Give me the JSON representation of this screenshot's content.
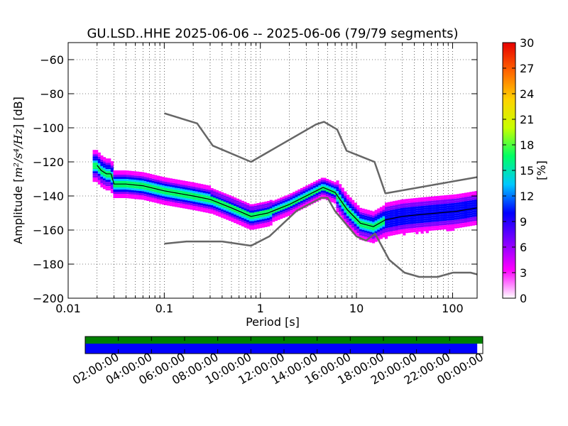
{
  "chart_data": {
    "type": "heatmap",
    "title": "GU.LSD..HHE   2025-06-06 -- 2025-06-06  (79/79 segments)",
    "xlabel": "Period [s]",
    "ylabel_prefix": "Amplitude [",
    "ylabel_math": "m²/s⁴/Hz",
    "ylabel_suffix": "] [dB]",
    "x_scale": "log",
    "xlim": [
      0.01,
      180
    ],
    "ylim": [
      -200,
      -50
    ],
    "x_ticks": [
      {
        "value": 0.01,
        "label": "0.01"
      },
      {
        "value": 0.1,
        "label": "0.1"
      },
      {
        "value": 1,
        "label": "1"
      },
      {
        "value": 10,
        "label": "10"
      },
      {
        "value": 100,
        "label": "100"
      }
    ],
    "y_ticks": [
      {
        "value": -60,
        "label": "−60"
      },
      {
        "value": -80,
        "label": "−80"
      },
      {
        "value": -100,
        "label": "−100"
      },
      {
        "value": -120,
        "label": "−120"
      },
      {
        "value": -140,
        "label": "−140"
      },
      {
        "value": -160,
        "label": "−160"
      },
      {
        "value": -180,
        "label": "−180"
      },
      {
        "value": -200,
        "label": "−200"
      }
    ],
    "grid": true,
    "colorbar": {
      "label": "[%]",
      "range": [
        0,
        30
      ],
      "ticks": [
        "0",
        "3",
        "6",
        "9",
        "12",
        "15",
        "18",
        "21",
        "24",
        "27",
        "30"
      ],
      "colors": [
        "#ffffff",
        "#ff00ff",
        "#7f00ff",
        "#0000ff",
        "#00c8ff",
        "#00ff64",
        "#c8ff00",
        "#ffd200",
        "#ff6400",
        "#e60000"
      ]
    },
    "new_high_noise_model": [
      {
        "period": 0.1,
        "db": -91.5
      },
      {
        "period": 0.22,
        "db": -97.4
      },
      {
        "period": 0.32,
        "db": -110.5
      },
      {
        "period": 0.8,
        "db": -120.0
      },
      {
        "period": 3.8,
        "db": -98.0
      },
      {
        "period": 4.6,
        "db": -96.5
      },
      {
        "period": 6.3,
        "db": -101.0
      },
      {
        "period": 7.9,
        "db": -113.5
      },
      {
        "period": 15.4,
        "db": -120.0
      },
      {
        "period": 20.0,
        "db": -138.5
      },
      {
        "period": 354.8,
        "db": -126.0
      }
    ],
    "new_low_noise_model": [
      {
        "period": 0.1,
        "db": -168.0
      },
      {
        "period": 0.17,
        "db": -166.7
      },
      {
        "period": 0.4,
        "db": -166.7
      },
      {
        "period": 0.8,
        "db": -169.2
      },
      {
        "period": 1.24,
        "db": -163.7
      },
      {
        "period": 2.4,
        "db": -148.6
      },
      {
        "period": 4.3,
        "db": -141.1
      },
      {
        "period": 5.0,
        "db": -141.1
      },
      {
        "period": 6.0,
        "db": -149.0
      },
      {
        "period": 10.0,
        "db": -163.8
      },
      {
        "period": 12.6,
        "db": -166.2
      },
      {
        "period": 15.6,
        "db": -162.1
      },
      {
        "period": 21.9,
        "db": -177.5
      },
      {
        "period": 31.6,
        "db": -185.0
      },
      {
        "period": 45.0,
        "db": -187.5
      },
      {
        "period": 70.0,
        "db": -187.5
      },
      {
        "period": 101.0,
        "db": -185.0
      },
      {
        "period": 154.0,
        "db": -185.0
      },
      {
        "period": 180.0,
        "db": -186.0
      }
    ],
    "psd_mode": [
      {
        "period": 0.02,
        "db": -122
      },
      {
        "period": 0.022,
        "db": -125
      },
      {
        "period": 0.025,
        "db": -127
      },
      {
        "period": 0.028,
        "db": -127
      },
      {
        "period": 0.03,
        "db": -133
      },
      {
        "period": 0.04,
        "db": -133
      },
      {
        "period": 0.06,
        "db": -134
      },
      {
        "period": 0.1,
        "db": -137
      },
      {
        "period": 0.2,
        "db": -140
      },
      {
        "period": 0.3,
        "db": -142
      },
      {
        "period": 0.5,
        "db": -147
      },
      {
        "period": 0.8,
        "db": -152
      },
      {
        "period": 1.2,
        "db": -150
      },
      {
        "period": 2,
        "db": -145
      },
      {
        "period": 3,
        "db": -140
      },
      {
        "period": 4.5,
        "db": -135
      },
      {
        "period": 6,
        "db": -138
      },
      {
        "period": 8,
        "db": -148
      },
      {
        "period": 11,
        "db": -156
      },
      {
        "period": 15,
        "db": -158
      },
      {
        "period": 20,
        "db": -154
      },
      {
        "period": 30,
        "db": -152
      },
      {
        "period": 45,
        "db": -151
      },
      {
        "period": 70,
        "db": -150
      },
      {
        "period": 110,
        "db": -149
      },
      {
        "period": 180,
        "db": -147
      }
    ],
    "psd_heatmap_regions": [
      {
        "period_min": 0.018,
        "period_max": 0.03,
        "db_low": -129,
        "db_high": -113,
        "level": 3
      },
      {
        "period_min": 0.03,
        "period_max": 0.3,
        "db_low": -145,
        "db_high": -126,
        "level": 3
      },
      {
        "period_min": 0.3,
        "period_max": 1.2,
        "db_low": -157,
        "db_high": -142,
        "level": 3
      },
      {
        "period_min": 1.2,
        "period_max": 6,
        "db_low": -152,
        "db_high": -132,
        "level": 3
      },
      {
        "period_min": 6,
        "period_max": 20,
        "db_low": -162,
        "db_high": -130,
        "level": 3
      },
      {
        "period_min": 20,
        "period_max": 180,
        "db_low": -166,
        "db_high": -136,
        "level": 3
      }
    ],
    "timeline": {
      "tick_labels": [
        "02:00:00",
        "04:00:00",
        "06:00:00",
        "08:00:00",
        "10:00:00",
        "12:00:00",
        "14:00:00",
        "16:00:00",
        "18:00:00",
        "20:00:00",
        "22:00:00",
        "00:00:00"
      ],
      "data_available_fraction": 1.0,
      "processed_fraction": 0.986,
      "data_color": "#008000",
      "processed_color": "#0000ff"
    },
    "noise_model_color": "#666666",
    "mode_color": "#000000"
  }
}
